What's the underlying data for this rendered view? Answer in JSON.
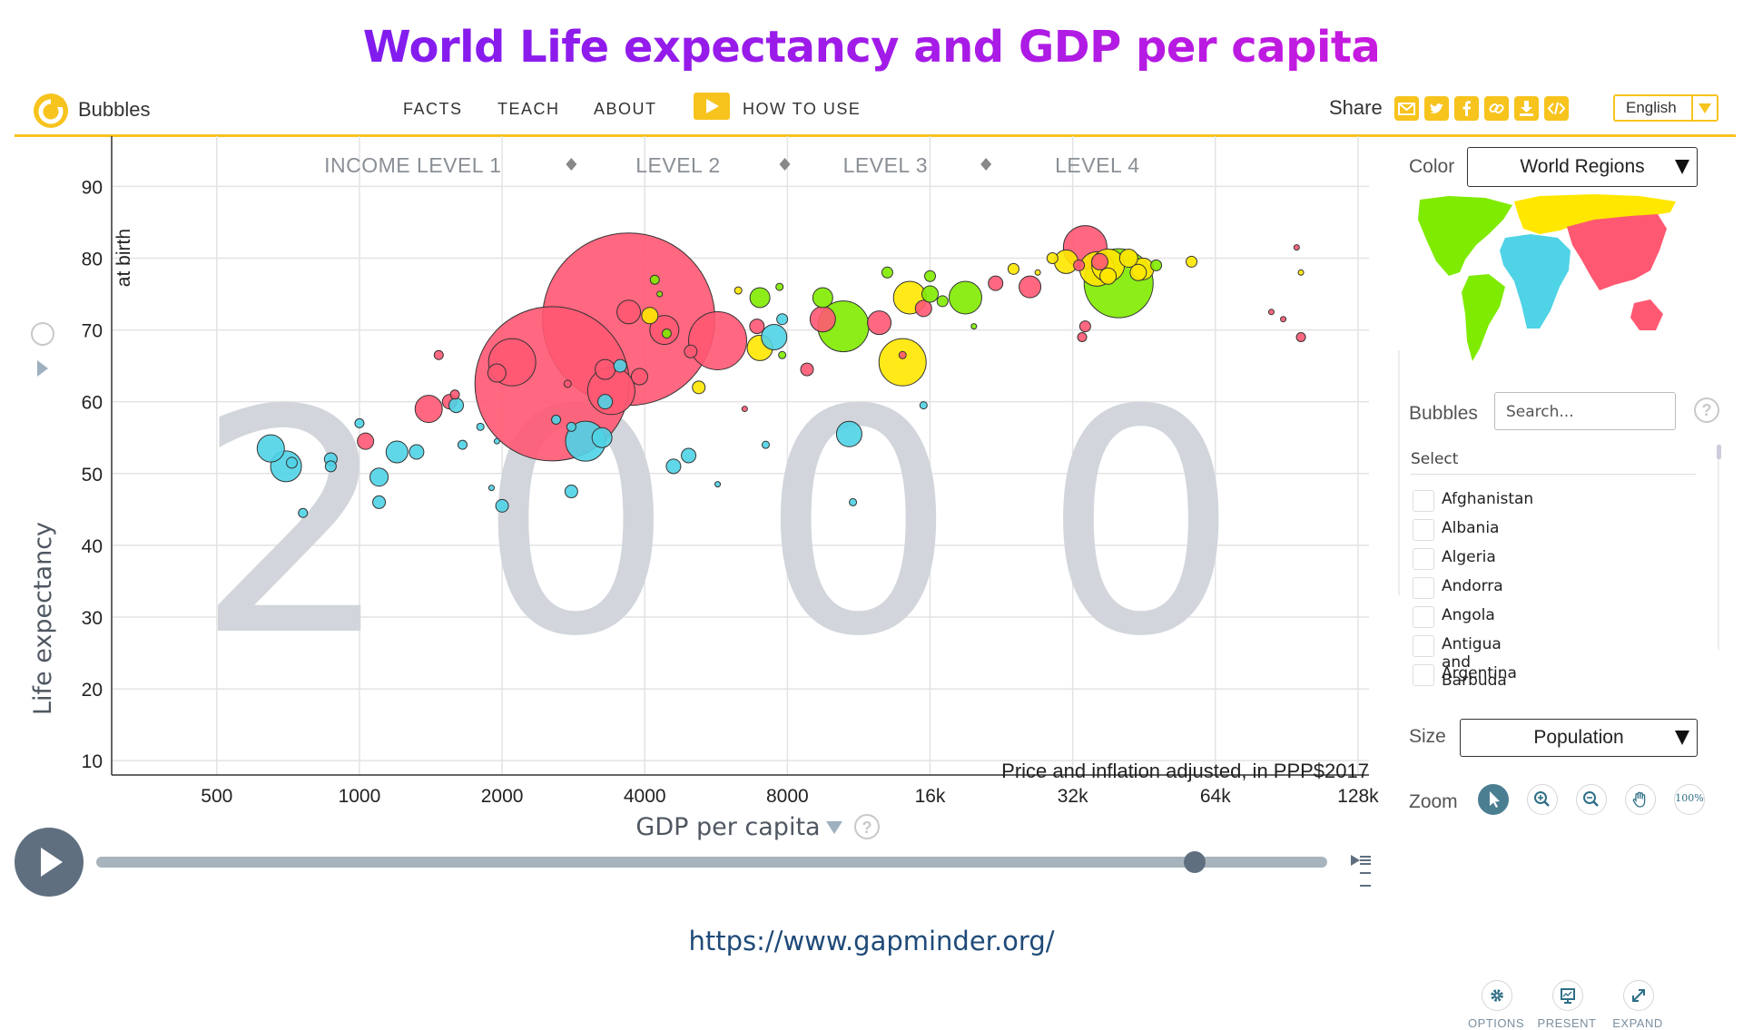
{
  "page_title": "World Life expectancy and GDP per capita",
  "header": {
    "app_name": "Bubbles",
    "nav": [
      "FACTS",
      "TEACH",
      "ABOUT",
      "HOW TO USE"
    ],
    "share_label": "Share",
    "share_icons": [
      "mail-icon",
      "twitter-icon",
      "facebook-icon",
      "link-icon",
      "download-icon",
      "embed-icon"
    ],
    "language": "English",
    "accent_color": "#f7c31d"
  },
  "chart_data": {
    "type": "scatter",
    "year": "2000",
    "x_label": "GDP per capita",
    "y_label": "Life expectancy",
    "y_sublabel": "at birth",
    "x_scale": "log2",
    "x_ticks": [
      500,
      1000,
      2000,
      4000,
      8000,
      16000,
      32000,
      64000,
      128000
    ],
    "x_tick_labels": [
      "500",
      "1000",
      "2000",
      "4000",
      "8000",
      "16k",
      "32k",
      "64k",
      "128k"
    ],
    "y_ticks": [
      10,
      20,
      30,
      40,
      50,
      60,
      70,
      80,
      90
    ],
    "y_tick_labels": [
      "10",
      "20",
      "30",
      "40",
      "50",
      "60",
      "70",
      "80",
      "90"
    ],
    "xlim": [
      300,
      135000
    ],
    "ylim": [
      8,
      97
    ],
    "income_levels": [
      "INCOME LEVEL 1",
      "LEVEL 2",
      "LEVEL 3",
      "LEVEL 4"
    ],
    "income_level_boundaries": [
      2800,
      7900,
      21000
    ],
    "note": "Price and inflation adjusted, in PPP$2017",
    "grid": true,
    "size_by": "Population",
    "color_by": "World Regions",
    "region_colors": {
      "africa": "#4fd3e6",
      "asia": "#ff5872",
      "americas": "#7feb00",
      "europe": "#ffe700"
    },
    "points": [
      {
        "gdp": 3700,
        "life": 71.5,
        "r": 95,
        "region": "asia"
      },
      {
        "gdp": 2550,
        "life": 62.5,
        "r": 85,
        "region": "asia"
      },
      {
        "gdp": 40000,
        "life": 76.5,
        "r": 38,
        "region": "americas"
      },
      {
        "gdp": 5700,
        "life": 68.5,
        "r": 32,
        "region": "asia"
      },
      {
        "gdp": 2100,
        "life": 65.5,
        "r": 26,
        "region": "asia"
      },
      {
        "gdp": 3400,
        "life": 61.5,
        "r": 26,
        "region": "asia"
      },
      {
        "gdp": 10500,
        "life": 70.5,
        "r": 28,
        "region": "americas"
      },
      {
        "gdp": 14000,
        "life": 65.5,
        "r": 26,
        "region": "europe"
      },
      {
        "gdp": 34000,
        "life": 81.5,
        "r": 24,
        "region": "asia"
      },
      {
        "gdp": 3000,
        "life": 54.5,
        "r": 22,
        "region": "africa"
      },
      {
        "gdp": 36000,
        "life": 78.5,
        "r": 19,
        "region": "europe"
      },
      {
        "gdp": 38000,
        "life": 79,
        "r": 18,
        "region": "europe"
      },
      {
        "gdp": 19000,
        "life": 74.5,
        "r": 18,
        "region": "americas"
      },
      {
        "gdp": 14500,
        "life": 74.5,
        "r": 18,
        "region": "europe"
      },
      {
        "gdp": 4400,
        "life": 70,
        "r": 16,
        "region": "asia"
      },
      {
        "gdp": 7000,
        "life": 67.5,
        "r": 14,
        "region": "europe"
      },
      {
        "gdp": 700,
        "life": 51,
        "r": 17,
        "region": "africa"
      },
      {
        "gdp": 650,
        "life": 53.5,
        "r": 15,
        "region": "africa"
      },
      {
        "gdp": 1400,
        "life": 59,
        "r": 15,
        "region": "asia"
      },
      {
        "gdp": 9500,
        "life": 71.5,
        "r": 14,
        "region": "asia"
      },
      {
        "gdp": 7500,
        "life": 69,
        "r": 14,
        "region": "africa"
      },
      {
        "gdp": 10800,
        "life": 55.5,
        "r": 14,
        "region": "africa"
      },
      {
        "gdp": 3700,
        "life": 72.5,
        "r": 13,
        "region": "asia"
      },
      {
        "gdp": 12500,
        "life": 71,
        "r": 13,
        "region": "asia"
      },
      {
        "gdp": 31000,
        "life": 79.5,
        "r": 13,
        "region": "europe"
      },
      {
        "gdp": 45000,
        "life": 78.5,
        "r": 12,
        "region": "europe"
      },
      {
        "gdp": 26000,
        "life": 76,
        "r": 12,
        "region": "asia"
      },
      {
        "gdp": 1200,
        "life": 53,
        "r": 12,
        "region": "africa"
      },
      {
        "gdp": 7000,
        "life": 74.5,
        "r": 11,
        "region": "americas"
      },
      {
        "gdp": 9500,
        "life": 74.5,
        "r": 11,
        "region": "americas"
      },
      {
        "gdp": 3300,
        "life": 64.5,
        "r": 11,
        "region": "asia"
      },
      {
        "gdp": 1950,
        "life": 64,
        "r": 10,
        "region": "asia"
      },
      {
        "gdp": 1100,
        "life": 49.5,
        "r": 10,
        "region": "africa"
      },
      {
        "gdp": 3250,
        "life": 55,
        "r": 11,
        "region": "africa"
      },
      {
        "gdp": 42000,
        "life": 80,
        "r": 10,
        "region": "europe"
      },
      {
        "gdp": 44000,
        "life": 78,
        "r": 9,
        "region": "europe"
      },
      {
        "gdp": 4100,
        "life": 72,
        "r": 9,
        "region": "europe"
      },
      {
        "gdp": 36500,
        "life": 79.5,
        "r": 9,
        "region": "asia"
      },
      {
        "gdp": 3900,
        "life": 63.5,
        "r": 9,
        "region": "asia"
      },
      {
        "gdp": 38000,
        "life": 77.5,
        "r": 9,
        "region": "europe"
      },
      {
        "gdp": 15500,
        "life": 73,
        "r": 9,
        "region": "asia"
      },
      {
        "gdp": 16000,
        "life": 75,
        "r": 9,
        "region": "americas"
      },
      {
        "gdp": 3300,
        "life": 60,
        "r": 8,
        "region": "africa"
      },
      {
        "gdp": 870,
        "life": 52,
        "r": 7,
        "region": "africa"
      },
      {
        "gdp": 1030,
        "life": 54.5,
        "r": 9,
        "region": "asia"
      },
      {
        "gdp": 1550,
        "life": 60,
        "r": 8,
        "region": "asia"
      },
      {
        "gdp": 1600,
        "life": 59.5,
        "r": 8,
        "region": "africa"
      },
      {
        "gdp": 1320,
        "life": 53,
        "r": 8,
        "region": "africa"
      },
      {
        "gdp": 4950,
        "life": 52.5,
        "r": 8,
        "region": "africa"
      },
      {
        "gdp": 4600,
        "life": 51,
        "r": 8,
        "region": "africa"
      },
      {
        "gdp": 2800,
        "life": 47.5,
        "r": 7,
        "region": "africa"
      },
      {
        "gdp": 2000,
        "life": 45.5,
        "r": 7,
        "region": "africa"
      },
      {
        "gdp": 1100,
        "life": 46,
        "r": 7,
        "region": "africa"
      },
      {
        "gdp": 22000,
        "life": 76.5,
        "r": 8,
        "region": "asia"
      },
      {
        "gdp": 6900,
        "life": 70.5,
        "r": 8,
        "region": "asia"
      },
      {
        "gdp": 5200,
        "life": 62,
        "r": 7,
        "region": "europe"
      },
      {
        "gdp": 8800,
        "life": 64.5,
        "r": 7,
        "region": "asia"
      },
      {
        "gdp": 5000,
        "life": 67,
        "r": 7,
        "region": "asia"
      },
      {
        "gdp": 3550,
        "life": 65,
        "r": 7,
        "region": "africa"
      },
      {
        "gdp": 13000,
        "life": 78,
        "r": 6,
        "region": "americas"
      },
      {
        "gdp": 16000,
        "life": 77.5,
        "r": 6,
        "region": "americas"
      },
      {
        "gdp": 17000,
        "life": 74,
        "r": 6,
        "region": "americas"
      },
      {
        "gdp": 7800,
        "life": 71.5,
        "r": 6,
        "region": "africa"
      },
      {
        "gdp": 33500,
        "life": 69,
        "r": 5,
        "region": "asia"
      },
      {
        "gdp": 34000,
        "life": 70.5,
        "r": 6,
        "region": "asia"
      },
      {
        "gdp": 48000,
        "life": 79,
        "r": 6,
        "region": "americas"
      },
      {
        "gdp": 57000,
        "life": 79.5,
        "r": 6,
        "region": "europe"
      },
      {
        "gdp": 33000,
        "life": 79,
        "r": 6,
        "region": "asia"
      },
      {
        "gdp": 29000,
        "life": 80,
        "r": 6,
        "region": "europe"
      },
      {
        "gdp": 24000,
        "life": 78.5,
        "r": 6,
        "region": "europe"
      },
      {
        "gdp": 97000,
        "life": 69,
        "r": 5,
        "region": "asia"
      },
      {
        "gdp": 720,
        "life": 51.5,
        "r": 6,
        "region": "africa"
      },
      {
        "gdp": 760,
        "life": 44.5,
        "r": 5,
        "region": "africa"
      },
      {
        "gdp": 870,
        "life": 51,
        "r": 6,
        "region": "africa"
      },
      {
        "gdp": 1000,
        "life": 57,
        "r": 5,
        "region": "africa"
      },
      {
        "gdp": 1470,
        "life": 66.5,
        "r": 5,
        "region": "asia"
      },
      {
        "gdp": 1590,
        "life": 61,
        "r": 5,
        "region": "asia"
      },
      {
        "gdp": 1650,
        "life": 54,
        "r": 5,
        "region": "africa"
      },
      {
        "gdp": 1800,
        "life": 56.5,
        "r": 4,
        "region": "africa"
      },
      {
        "gdp": 1900,
        "life": 48,
        "r": 3,
        "region": "africa"
      },
      {
        "gdp": 1950,
        "life": 54.5,
        "r": 3,
        "region": "africa"
      },
      {
        "gdp": 2600,
        "life": 57.5,
        "r": 5,
        "region": "africa"
      },
      {
        "gdp": 2750,
        "life": 62.5,
        "r": 4,
        "region": "asia"
      },
      {
        "gdp": 2800,
        "life": 56.5,
        "r": 5,
        "region": "africa"
      },
      {
        "gdp": 4200,
        "life": 77,
        "r": 5,
        "region": "americas"
      },
      {
        "gdp": 4450,
        "life": 69.5,
        "r": 5,
        "region": "americas"
      },
      {
        "gdp": 6300,
        "life": 75.5,
        "r": 4,
        "region": "europe"
      },
      {
        "gdp": 7700,
        "life": 76,
        "r": 4,
        "region": "americas"
      },
      {
        "gdp": 5700,
        "life": 48.5,
        "r": 3,
        "region": "africa"
      },
      {
        "gdp": 7200,
        "life": 54,
        "r": 4,
        "region": "africa"
      },
      {
        "gdp": 7800,
        "life": 66.5,
        "r": 4,
        "region": "americas"
      },
      {
        "gdp": 11000,
        "life": 46,
        "r": 4,
        "region": "africa"
      },
      {
        "gdp": 14000,
        "life": 66.5,
        "r": 4,
        "region": "asia"
      },
      {
        "gdp": 15500,
        "life": 59.5,
        "r": 4,
        "region": "africa"
      },
      {
        "gdp": 19800,
        "life": 70.5,
        "r": 3,
        "region": "americas"
      },
      {
        "gdp": 27000,
        "life": 78,
        "r": 3,
        "region": "europe"
      },
      {
        "gdp": 84000,
        "life": 72.5,
        "r": 3,
        "region": "asia"
      },
      {
        "gdp": 89000,
        "life": 71.5,
        "r": 3,
        "region": "asia"
      },
      {
        "gdp": 95000,
        "life": 81.5,
        "r": 3,
        "region": "asia"
      },
      {
        "gdp": 97000,
        "life": 78,
        "r": 3,
        "region": "europe"
      },
      {
        "gdp": 4300,
        "life": 75,
        "r": 3,
        "region": "americas"
      },
      {
        "gdp": 6500,
        "life": 59,
        "r": 3,
        "region": "asia"
      }
    ]
  },
  "side_panel": {
    "color_label": "Color",
    "color_value": "World Regions",
    "bubbles_label": "Bubbles",
    "search_placeholder": "Search...",
    "help": "?",
    "select_label": "Select",
    "countries": [
      "Afghanistan",
      "Albania",
      "Algeria",
      "Andorra",
      "Angola",
      "Antigua and Barbuda",
      "Argentina"
    ],
    "size_label": "Size",
    "size_value": "Population",
    "zoom_label": "Zoom",
    "zoom_percent": "100%",
    "options": [
      "OPTIONS",
      "PRESENT",
      "EXPAND"
    ]
  },
  "source_url": "https://www.gapminder.org/"
}
